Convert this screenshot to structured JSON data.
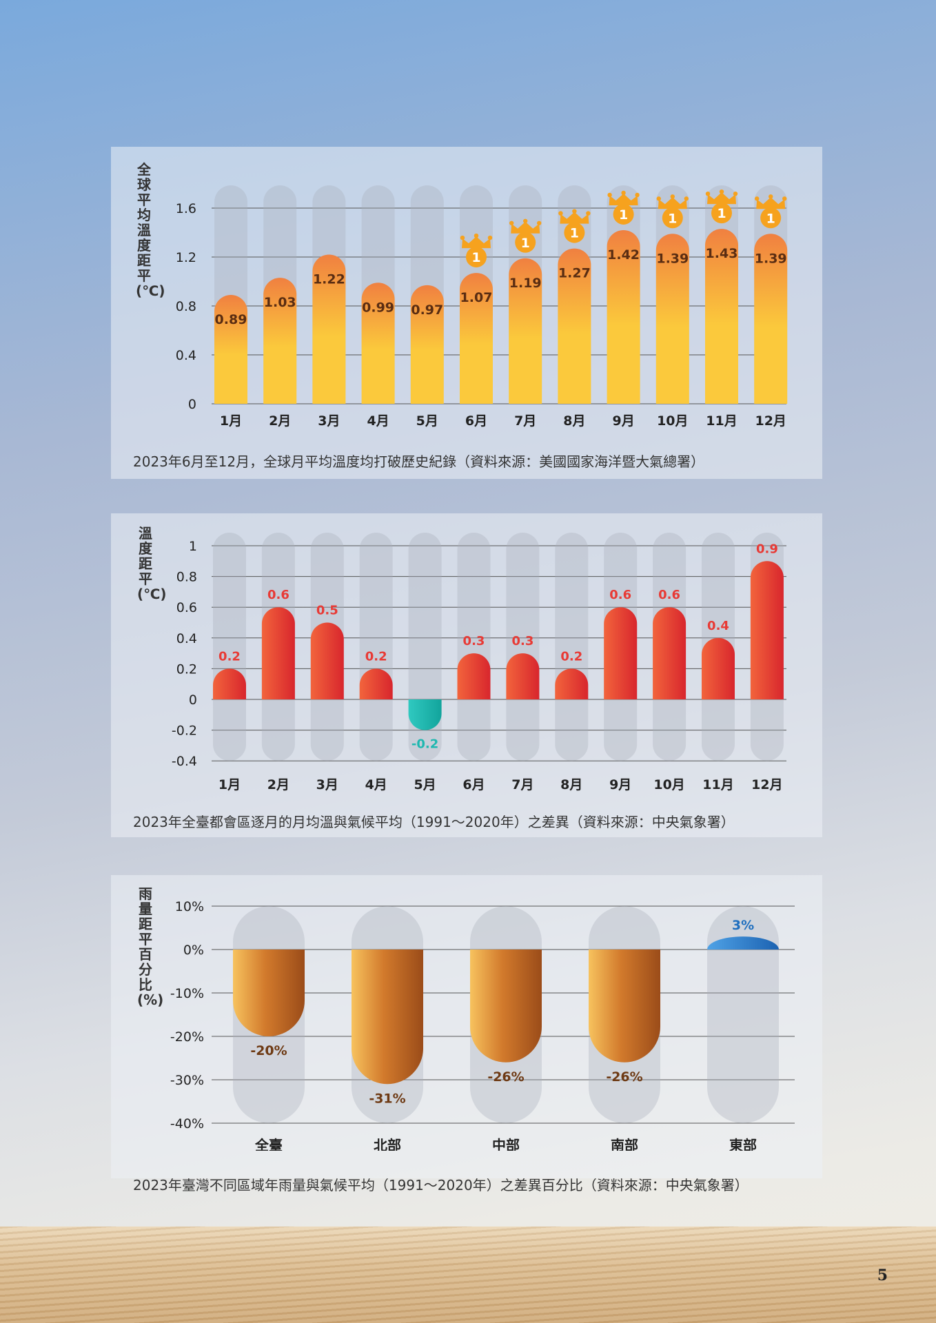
{
  "colors": {
    "orange": "#f08040",
    "yellow": "#fbc93c",
    "red": "#e83a35",
    "teal": "#1fb8b0",
    "brown": "#a5531c",
    "blue": "#1f6fbf",
    "crown": "#f6a21e"
  },
  "chart_data": [
    {
      "type": "bar",
      "ylabel": "全球平均溫度距平(℃)",
      "categories": [
        "1月",
        "2月",
        "3月",
        "4月",
        "5月",
        "6月",
        "7月",
        "8月",
        "9月",
        "10月",
        "11月",
        "12月"
      ],
      "values": [
        0.89,
        1.03,
        1.22,
        0.99,
        0.97,
        1.07,
        1.19,
        1.27,
        1.42,
        1.39,
        1.43,
        1.39
      ],
      "labels": [
        "0.89",
        "1.03",
        "1.22",
        "0.99",
        "0.97",
        "1.07",
        "1.19",
        "1.27",
        "1.42",
        "1.39",
        "1.43",
        "1.39"
      ],
      "record_badge": "1",
      "record_months": [
        "6月",
        "7月",
        "8月",
        "9月",
        "10月",
        "11月",
        "12月"
      ],
      "ylim": [
        0,
        1.8
      ],
      "yticks": [
        0,
        0.4,
        0.8,
        1.2,
        1.6
      ],
      "ytick_labels": [
        "0",
        "0.4",
        "0.8",
        "1.2",
        "1.6"
      ],
      "grid": true,
      "caption": "2023年6月至12月，全球月平均溫度均打破歷史紀錄（資料來源：美國國家海洋暨大氣總署）"
    },
    {
      "type": "bar",
      "ylabel": "溫度距平(℃)",
      "categories": [
        "1月",
        "2月",
        "3月",
        "4月",
        "5月",
        "6月",
        "7月",
        "8月",
        "9月",
        "10月",
        "11月",
        "12月"
      ],
      "values": [
        0.2,
        0.6,
        0.5,
        0.2,
        -0.2,
        0.3,
        0.3,
        0.2,
        0.6,
        0.6,
        0.4,
        0.9
      ],
      "labels": [
        "0.2",
        "0.6",
        "0.5",
        "0.2",
        "-0.2",
        "0.3",
        "0.3",
        "0.2",
        "0.6",
        "0.6",
        "0.4",
        "0.9"
      ],
      "ylim": [
        -0.4,
        1.0
      ],
      "yticks": [
        1,
        0.8,
        0.6,
        0.4,
        0.2,
        0,
        -0.2,
        -0.4
      ],
      "ytick_labels": [
        "1",
        "0.8",
        "0.6",
        "0.4",
        "0.2",
        "0",
        "-0.2",
        "-0.4"
      ],
      "grid": true,
      "caption": "2023年全臺都會區逐月的月均溫與氣候平均（1991～2020年）之差異（資料來源：中央氣象署）"
    },
    {
      "type": "bar",
      "ylabel": "雨量距平百分比(%)",
      "categories": [
        "全臺",
        "北部",
        "中部",
        "南部",
        "東部"
      ],
      "values": [
        -20,
        -31,
        -26,
        -26,
        3
      ],
      "labels": [
        "-20%",
        "-31%",
        "-26%",
        "-26%",
        "3%"
      ],
      "ylim": [
        -40,
        10
      ],
      "yticks": [
        10,
        0,
        -10,
        -20,
        -30,
        -40
      ],
      "ytick_labels": [
        "10%",
        "0%",
        "-10%",
        "-20%",
        "-30%",
        "-40%"
      ],
      "grid": true,
      "caption": "2023年臺灣不同區域年雨量與氣候平均（1991～2020年）之差異百分比（資料來源：中央氣象署）"
    }
  ],
  "page_number": "5"
}
